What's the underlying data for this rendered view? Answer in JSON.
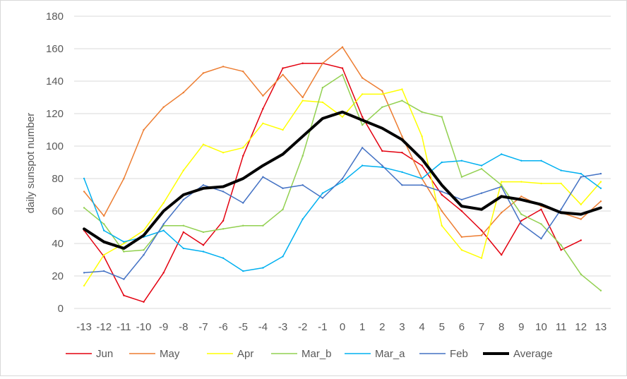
{
  "chart_data": {
    "type": "line",
    "title": "",
    "xlabel": "",
    "ylabel": "daily sunspot number",
    "ylim": [
      0,
      180
    ],
    "y_ticks": [
      0,
      20,
      40,
      60,
      80,
      100,
      120,
      140,
      160,
      180
    ],
    "grid": "horizontal",
    "legend_position": "bottom",
    "categories": [
      "-13",
      "-12",
      "-11",
      "-10",
      "-9",
      "-8",
      "-7",
      "-6",
      "-5",
      "-4",
      "-3",
      "-2",
      "-1",
      "0",
      "1",
      "2",
      "3",
      "4",
      "5",
      "6",
      "7",
      "8",
      "9",
      "10",
      "11",
      "12",
      "13"
    ],
    "series": [
      {
        "name": "Jun",
        "color": "#e3000f",
        "width": 1.5,
        "values": [
          48,
          32,
          8,
          4,
          22,
          47,
          39,
          54,
          94,
          123,
          148,
          151,
          151,
          148,
          118,
          97,
          96,
          88,
          70,
          60,
          48,
          33,
          54,
          61,
          36,
          42,
          null
        ]
      },
      {
        "name": "May",
        "color": "#ed7d31",
        "width": 1.5,
        "values": [
          72,
          57,
          80,
          110,
          124,
          133,
          145,
          149,
          146,
          131,
          144,
          130,
          151,
          161,
          142,
          134,
          106,
          80,
          60,
          44,
          45,
          59,
          69,
          63,
          59,
          55,
          66
        ]
      },
      {
        "name": "Apr",
        "color": "#ffff00",
        "width": 1.5,
        "values": [
          14,
          33,
          40,
          48,
          65,
          85,
          101,
          96,
          99,
          114,
          110,
          128,
          127,
          118,
          132,
          132,
          135,
          106,
          51,
          36,
          31,
          78,
          78,
          77,
          77,
          64,
          78
        ]
      },
      {
        "name": "Mar_b",
        "color": "#92d050",
        "width": 1.5,
        "values": [
          62,
          52,
          35,
          36,
          51,
          51,
          47,
          49,
          51,
          51,
          61,
          94,
          136,
          144,
          113,
          124,
          128,
          121,
          118,
          81,
          86,
          76,
          58,
          52,
          39,
          21,
          11
        ]
      },
      {
        "name": "Mar_a",
        "color": "#00b0f0",
        "width": 1.5,
        "values": [
          80,
          48,
          41,
          44,
          48,
          37,
          35,
          31,
          23,
          25,
          32,
          55,
          71,
          78,
          88,
          87,
          84,
          80,
          90,
          91,
          88,
          95,
          91,
          91,
          85,
          83,
          74
        ]
      },
      {
        "name": "Feb",
        "color": "#4472c4",
        "width": 1.5,
        "values": [
          22,
          23,
          18,
          33,
          52,
          67,
          76,
          72,
          65,
          81,
          74,
          76,
          68,
          80,
          99,
          88,
          76,
          76,
          72,
          67,
          71,
          75,
          52,
          43,
          61,
          81,
          83
        ]
      },
      {
        "name": "Average",
        "color": "#000000",
        "width": 4,
        "values": [
          49,
          41,
          37,
          45,
          60,
          70,
          74,
          75,
          80,
          88,
          95,
          106,
          117,
          121,
          116,
          111,
          104,
          92,
          76,
          63,
          61,
          69,
          67,
          64,
          59,
          58,
          62
        ]
      }
    ]
  }
}
